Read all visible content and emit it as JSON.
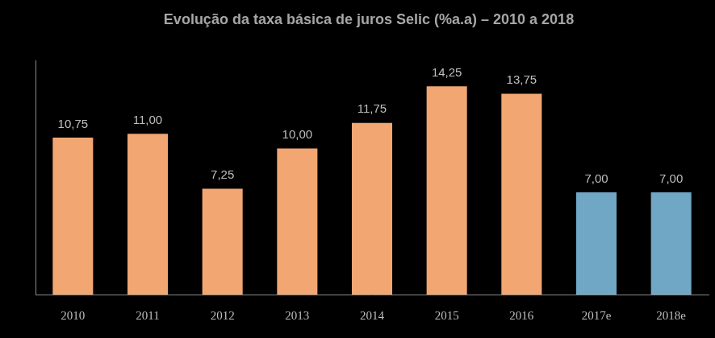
{
  "chart_data": {
    "type": "bar",
    "title": "Evolução da taxa básica de juros Selic (%a.a) – 2010 a 2018",
    "categories": [
      "2010",
      "2011",
      "2012",
      "2013",
      "2014",
      "2015",
      "2016",
      "2017e",
      "2018e"
    ],
    "values": [
      10.75,
      11.0,
      7.25,
      10.0,
      11.75,
      14.25,
      13.75,
      7.0,
      7.0
    ],
    "value_labels": [
      "10,75",
      "11,00",
      "7,25",
      "10,00",
      "11,75",
      "14,25",
      "13,75",
      "7,00",
      "7,00"
    ],
    "colors": [
      "#f2a672",
      "#f2a672",
      "#f2a672",
      "#f2a672",
      "#f2a672",
      "#f2a672",
      "#f2a672",
      "#6fa7c4",
      "#6fa7c4"
    ],
    "ylim": [
      0,
      16
    ],
    "grid": false,
    "data_labels": true,
    "tick_labels": "x"
  }
}
